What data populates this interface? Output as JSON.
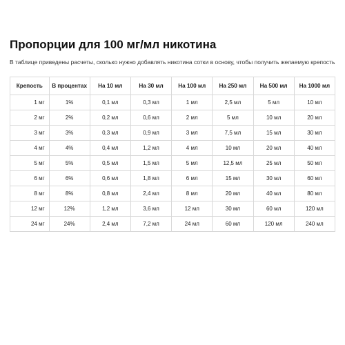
{
  "title": "Пропорции для 100 мг/мл никотина",
  "subtitle": "В таблице приведены расчеты, сколько нужно добавлять никотина сотки в основу, чтобы получить желаемую крепость",
  "table": {
    "type": "table",
    "background_color": "#ffffff",
    "border_color": "#d8d8d8",
    "text_color": "#222222",
    "font_size_header": 8.2,
    "font_size_cell": 8,
    "columns": [
      "Крепость",
      "В процентах",
      "На 10 мл",
      "На 30 мл",
      "На 100 мл",
      "На 250 мл",
      "На 500 мл",
      "На 1000 мл"
    ],
    "col_widths_pct": [
      12,
      12.57,
      12.57,
      12.57,
      12.57,
      12.57,
      12.57,
      12.57
    ],
    "rows": [
      [
        "1 мг",
        "1%",
        "0,1 мл",
        "0,3 мл",
        "1 мл",
        "2,5 мл",
        "5 мл",
        "10 мл"
      ],
      [
        "2 мг",
        "2%",
        "0,2 мл",
        "0,6 мл",
        "2 мл",
        "5 мл",
        "10 мл",
        "20 мл"
      ],
      [
        "3 мг",
        "3%",
        "0,3 мл",
        "0,9 мл",
        "3 мл",
        "7,5 мл",
        "15 мл",
        "30 мл"
      ],
      [
        "4 мг",
        "4%",
        "0,4 мл",
        "1,2 мл",
        "4 мл",
        "10 мл",
        "20 мл",
        "40 мл"
      ],
      [
        "5 мг",
        "5%",
        "0,5 мл",
        "1,5 мл",
        "5 мл",
        "12,5 мл",
        "25 мл",
        "50 мл"
      ],
      [
        "6 мг",
        "6%",
        "0,6 мл",
        "1,8 мл",
        "6 мл",
        "15 мл",
        "30 мл",
        "60 мл"
      ],
      [
        "8 мг",
        "8%",
        "0,8 мл",
        "2,4 мл",
        "8 мл",
        "20 мл",
        "40 мл",
        "80 мл"
      ],
      [
        "12 мг",
        "12%",
        "1,2 мл",
        "3,6 мл",
        "12 мл",
        "30 мл",
        "60 мл",
        "120 мл"
      ],
      [
        "24 мг",
        "24%",
        "2,4 мл",
        "7,2 мл",
        "24 мл",
        "60 мл",
        "120 мл",
        "240 мл"
      ]
    ]
  }
}
